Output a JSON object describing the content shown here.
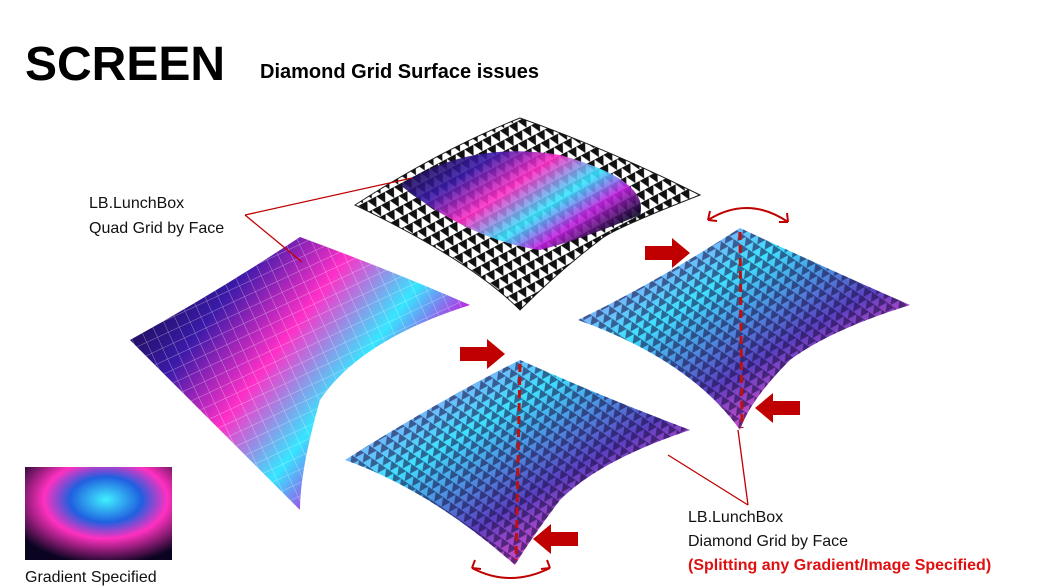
{
  "header": {
    "title": "SCREEN",
    "subtitle": "Diamond Grid Surface issues"
  },
  "annotations": [
    {
      "lines": [
        "LB.LunchBox",
        "Quad Grid by Face"
      ]
    },
    {
      "lines": [
        "LB.LunchBox",
        "Diamond Grid by Face"
      ],
      "highlight": "(Splitting any Gradient/Image Specified)"
    }
  ],
  "thumbnail": {
    "caption": "Gradient Specified"
  }
}
